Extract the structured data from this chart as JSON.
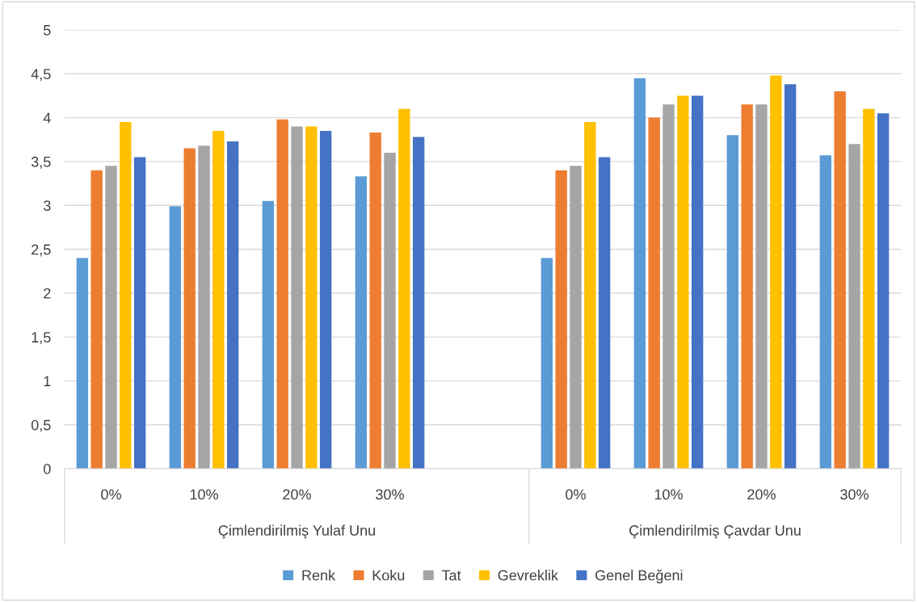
{
  "chart_data": {
    "type": "bar",
    "categories": [
      "0%",
      "10%",
      "20%",
      "30%",
      null,
      "0%",
      "10%",
      "20%",
      "30%"
    ],
    "series": [
      {
        "name": "Renk",
        "color": "#5b9bd5",
        "values": [
          2.4,
          2.99,
          3.05,
          3.33,
          null,
          2.4,
          4.45,
          3.8,
          3.57
        ]
      },
      {
        "name": "Koku",
        "color": "#ed7d31",
        "values": [
          3.4,
          3.65,
          3.98,
          3.83,
          null,
          3.4,
          4.0,
          4.15,
          4.3
        ]
      },
      {
        "name": "Tat",
        "color": "#a5a5a5",
        "values": [
          3.45,
          3.68,
          3.9,
          3.6,
          null,
          3.45,
          4.15,
          4.15,
          3.7
        ]
      },
      {
        "name": "Gevreklik",
        "color": "#ffc000",
        "values": [
          3.95,
          3.85,
          3.9,
          4.1,
          null,
          3.95,
          4.25,
          4.48,
          4.1
        ]
      },
      {
        "name": "Genel Beğeni",
        "color": "#4472c4",
        "values": [
          3.55,
          3.73,
          3.85,
          3.78,
          null,
          3.55,
          4.25,
          4.38,
          4.05
        ]
      }
    ],
    "annotations": [
      "Çimlendirilmiş Yulaf Unu",
      "Çimlendirilmiş Çavdar Unu"
    ],
    "ylim": [
      0,
      5
    ],
    "yticks": [
      0,
      {
        "value": 0.5,
        "label": "0,5"
      },
      1,
      {
        "value": 1.5,
        "label": "1,5"
      },
      2,
      {
        "value": 2.5,
        "label": "2,5"
      },
      3,
      {
        "value": 3.5,
        "label": "3,5"
      },
      4,
      {
        "value": 4.5,
        "label": "4,5"
      },
      5
    ],
    "grid": "y",
    "legend": "bottom"
  }
}
